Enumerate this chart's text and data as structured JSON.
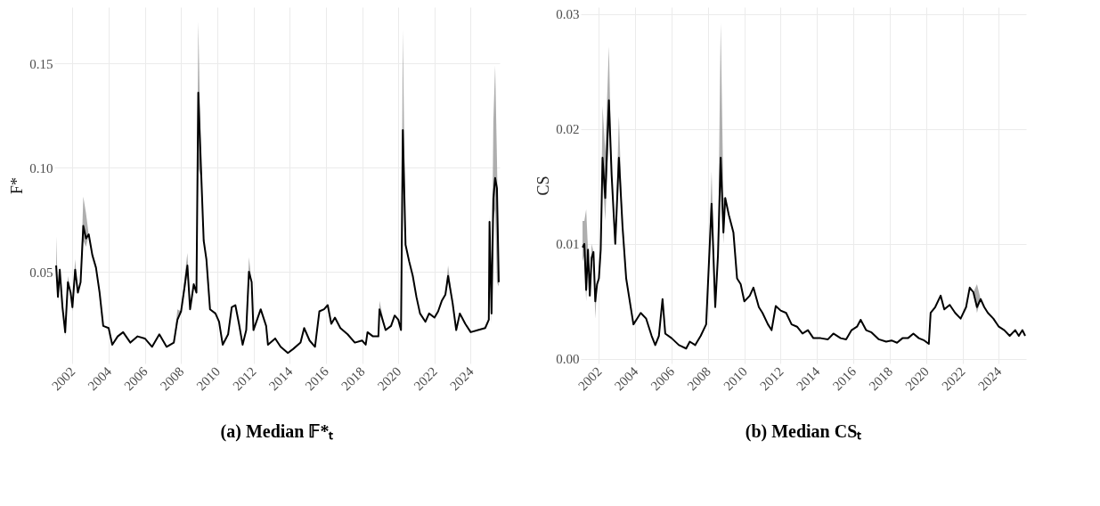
{
  "chart_data": [
    {
      "type": "line",
      "title": "(a) Median 𝔽*ₜ",
      "ylabel": "F*",
      "grid": true,
      "xlim": [
        2001.0,
        2025.6
      ],
      "xticks": [
        2002,
        2004,
        2006,
        2008,
        2010,
        2012,
        2014,
        2016,
        2018,
        2020,
        2022,
        2024
      ],
      "ylim": [
        0.006,
        0.177
      ],
      "yticks": [
        {
          "value": 0.05,
          "label": "0.05"
        },
        {
          "value": 0.1,
          "label": "0.10"
        },
        {
          "value": 0.15,
          "label": "0.15"
        }
      ],
      "x": [
        2001.1,
        2001.2,
        2001.3,
        2001.45,
        2001.6,
        2001.75,
        2001.9,
        2002.0,
        2002.15,
        2002.3,
        2002.45,
        2002.6,
        2002.75,
        2002.9,
        2003.1,
        2003.3,
        2003.5,
        2003.7,
        2004.0,
        2004.2,
        2004.5,
        2004.8,
        2005.2,
        2005.6,
        2006.0,
        2006.4,
        2006.8,
        2007.2,
        2007.6,
        2007.8,
        2008.0,
        2008.2,
        2008.35,
        2008.5,
        2008.7,
        2008.85,
        2008.95,
        2009.1,
        2009.25,
        2009.4,
        2009.6,
        2009.9,
        2010.1,
        2010.3,
        2010.6,
        2010.8,
        2011.0,
        2011.2,
        2011.4,
        2011.6,
        2011.75,
        2011.9,
        2012.0,
        2012.4,
        2012.7,
        2012.8,
        2013.2,
        2013.5,
        2013.9,
        2014.2,
        2014.6,
        2014.8,
        2015.1,
        2015.4,
        2015.64,
        2015.9,
        2016.1,
        2016.3,
        2016.5,
        2016.8,
        2017.2,
        2017.6,
        2018.0,
        2018.2,
        2018.3,
        2018.6,
        2018.9,
        2018.96,
        2019.3,
        2019.6,
        2019.8,
        2020.0,
        2020.15,
        2020.25,
        2020.4,
        2020.6,
        2020.8,
        2021.0,
        2021.2,
        2021.5,
        2021.7,
        2022.0,
        2022.2,
        2022.4,
        2022.6,
        2022.75,
        2023.0,
        2023.2,
        2023.4,
        2023.7,
        2024.0,
        2024.4,
        2024.8,
        2025.0,
        2025.04,
        2025.15,
        2025.25,
        2025.35,
        2025.45,
        2025.55
      ],
      "series": [
        {
          "color": "#000000",
          "values": [
            0.053,
            0.038,
            0.051,
            0.033,
            0.021,
            0.045,
            0.04,
            0.033,
            0.051,
            0.04,
            0.045,
            0.072,
            0.066,
            0.068,
            0.058,
            0.052,
            0.04,
            0.024,
            0.023,
            0.015,
            0.019,
            0.021,
            0.016,
            0.019,
            0.018,
            0.014,
            0.02,
            0.014,
            0.016,
            0.027,
            0.031,
            0.043,
            0.053,
            0.032,
            0.044,
            0.04,
            0.136,
            0.1,
            0.065,
            0.056,
            0.032,
            0.03,
            0.026,
            0.015,
            0.02,
            0.033,
            0.034,
            0.025,
            0.015,
            0.022,
            0.05,
            0.045,
            0.022,
            0.032,
            0.024,
            0.015,
            0.018,
            0.014,
            0.011,
            0.013,
            0.016,
            0.023,
            0.017,
            0.014,
            0.031,
            0.032,
            0.034,
            0.025,
            0.028,
            0.023,
            0.02,
            0.016,
            0.017,
            0.015,
            0.021,
            0.019,
            0.019,
            0.032,
            0.022,
            0.024,
            0.029,
            0.027,
            0.022,
            0.118,
            0.063,
            0.055,
            0.048,
            0.038,
            0.03,
            0.026,
            0.03,
            0.028,
            0.031,
            0.036,
            0.039,
            0.048,
            0.035,
            0.022,
            0.03,
            0.025,
            0.021,
            0.022,
            0.023,
            0.027,
            0.074,
            0.03,
            0.085,
            0.095,
            0.09,
            0.045
          ],
          "lower": [
            0.053,
            0.036,
            0.048,
            0.033,
            0.019,
            0.045,
            0.04,
            0.031,
            0.051,
            0.04,
            0.045,
            0.065,
            0.062,
            0.068,
            0.058,
            0.052,
            0.04,
            0.024,
            0.023,
            0.015,
            0.019,
            0.021,
            0.016,
            0.019,
            0.018,
            0.014,
            0.02,
            0.014,
            0.016,
            0.026,
            0.031,
            0.041,
            0.05,
            0.032,
            0.044,
            0.04,
            0.1,
            0.095,
            0.065,
            0.056,
            0.032,
            0.03,
            0.026,
            0.015,
            0.02,
            0.033,
            0.034,
            0.025,
            0.015,
            0.022,
            0.047,
            0.045,
            0.022,
            0.032,
            0.024,
            0.015,
            0.018,
            0.014,
            0.011,
            0.013,
            0.016,
            0.023,
            0.017,
            0.014,
            0.031,
            0.032,
            0.034,
            0.025,
            0.028,
            0.023,
            0.02,
            0.016,
            0.017,
            0.015,
            0.021,
            0.019,
            0.019,
            0.03,
            0.022,
            0.024,
            0.029,
            0.027,
            0.022,
            0.11,
            0.063,
            0.055,
            0.048,
            0.038,
            0.03,
            0.026,
            0.03,
            0.028,
            0.031,
            0.036,
            0.039,
            0.046,
            0.035,
            0.022,
            0.03,
            0.025,
            0.021,
            0.022,
            0.023,
            0.027,
            0.07,
            0.025,
            0.075,
            0.08,
            0.045,
            0.043
          ],
          "upper": [
            0.067,
            0.04,
            0.052,
            0.033,
            0.023,
            0.048,
            0.04,
            0.034,
            0.056,
            0.04,
            0.045,
            0.086,
            0.078,
            0.068,
            0.058,
            0.052,
            0.04,
            0.024,
            0.023,
            0.015,
            0.019,
            0.021,
            0.016,
            0.019,
            0.018,
            0.014,
            0.02,
            0.014,
            0.016,
            0.032,
            0.031,
            0.048,
            0.059,
            0.032,
            0.044,
            0.04,
            0.17,
            0.105,
            0.065,
            0.056,
            0.032,
            0.03,
            0.026,
            0.015,
            0.02,
            0.033,
            0.034,
            0.025,
            0.015,
            0.022,
            0.057,
            0.045,
            0.022,
            0.032,
            0.024,
            0.015,
            0.018,
            0.014,
            0.011,
            0.013,
            0.016,
            0.023,
            0.017,
            0.014,
            0.031,
            0.032,
            0.034,
            0.025,
            0.028,
            0.023,
            0.02,
            0.016,
            0.017,
            0.015,
            0.021,
            0.019,
            0.019,
            0.036,
            0.022,
            0.024,
            0.029,
            0.027,
            0.022,
            0.166,
            0.063,
            0.055,
            0.048,
            0.038,
            0.03,
            0.026,
            0.03,
            0.028,
            0.031,
            0.036,
            0.039,
            0.053,
            0.035,
            0.022,
            0.03,
            0.025,
            0.021,
            0.022,
            0.023,
            0.027,
            0.077,
            0.032,
            0.122,
            0.149,
            0.104,
            0.05
          ]
        }
      ]
    },
    {
      "type": "line",
      "title": "(b) Median CSₜ",
      "ylabel": "CS",
      "grid": true,
      "xlim": [
        2001.0,
        2025.5
      ],
      "xticks": [
        2002,
        2004,
        2006,
        2008,
        2010,
        2012,
        2014,
        2016,
        2018,
        2020,
        2022,
        2024
      ],
      "ylim": [
        -0.0004,
        0.0306
      ],
      "yticks": [
        {
          "value": 0,
          "label": "0.00"
        },
        {
          "value": 0.01,
          "label": "0.01"
        },
        {
          "value": 0.02,
          "label": "0.02"
        },
        {
          "value": 0.03,
          "label": "0.03"
        }
      ],
      "x": [
        2001.1,
        2001.2,
        2001.3,
        2001.4,
        2001.5,
        2001.6,
        2001.7,
        2001.8,
        2001.9,
        2002.0,
        2002.1,
        2002.2,
        2002.35,
        2002.55,
        2002.7,
        2002.9,
        2003.1,
        2003.3,
        2003.5,
        2003.7,
        2003.9,
        2004.1,
        2004.3,
        2004.6,
        2004.9,
        2005.1,
        2005.3,
        2005.5,
        2005.65,
        2006.0,
        2006.4,
        2006.8,
        2007.0,
        2007.3,
        2007.6,
        2007.9,
        2008.0,
        2008.2,
        2008.4,
        2008.55,
        2008.7,
        2008.85,
        2008.95,
        2009.15,
        2009.4,
        2009.6,
        2009.8,
        2010.0,
        2010.3,
        2010.5,
        2010.8,
        2011.0,
        2011.3,
        2011.5,
        2011.73,
        2012.0,
        2012.3,
        2012.6,
        2012.9,
        2013.2,
        2013.5,
        2013.8,
        2014.2,
        2014.6,
        2014.9,
        2015.3,
        2015.6,
        2015.9,
        2016.2,
        2016.4,
        2016.7,
        2017.0,
        2017.4,
        2017.8,
        2018.1,
        2018.4,
        2018.7,
        2019.0,
        2019.3,
        2019.6,
        2019.9,
        2020.15,
        2020.25,
        2020.5,
        2020.8,
        2021.0,
        2021.3,
        2021.6,
        2021.9,
        2022.2,
        2022.4,
        2022.6,
        2022.8,
        2023.0,
        2023.2,
        2023.4,
        2023.7,
        2024.0,
        2024.3,
        2024.6,
        2024.9,
        2025.1,
        2025.3,
        2025.45
      ],
      "series": [
        {
          "color": "#000000",
          "values": [
            0.0097,
            0.01,
            0.006,
            0.0095,
            0.0055,
            0.0088,
            0.0093,
            0.005,
            0.0065,
            0.007,
            0.0095,
            0.0175,
            0.014,
            0.0225,
            0.016,
            0.01,
            0.0175,
            0.0115,
            0.007,
            0.005,
            0.003,
            0.0035,
            0.004,
            0.0035,
            0.002,
            0.0012,
            0.002,
            0.0052,
            0.0022,
            0.0018,
            0.0012,
            0.0009,
            0.0015,
            0.0012,
            0.002,
            0.003,
            0.0065,
            0.0135,
            0.0045,
            0.009,
            0.0175,
            0.011,
            0.014,
            0.0125,
            0.011,
            0.007,
            0.0065,
            0.005,
            0.0055,
            0.0062,
            0.0045,
            0.004,
            0.003,
            0.0025,
            0.0046,
            0.0042,
            0.004,
            0.003,
            0.0028,
            0.0022,
            0.0025,
            0.0018,
            0.0018,
            0.0017,
            0.0022,
            0.0018,
            0.0017,
            0.0025,
            0.0028,
            0.0034,
            0.0025,
            0.0023,
            0.0017,
            0.0015,
            0.0016,
            0.0014,
            0.0018,
            0.0018,
            0.0022,
            0.0018,
            0.0016,
            0.0013,
            0.004,
            0.0045,
            0.0055,
            0.0043,
            0.0047,
            0.004,
            0.0035,
            0.0045,
            0.0062,
            0.0058,
            0.0045,
            0.0052,
            0.0045,
            0.004,
            0.0035,
            0.0028,
            0.0025,
            0.002,
            0.0025,
            0.002,
            0.0025,
            0.002
          ],
          "lower": [
            0.0085,
            0.009,
            0.005,
            0.0095,
            0.0055,
            0.008,
            0.0093,
            0.0035,
            0.0065,
            0.007,
            0.0095,
            0.016,
            0.012,
            0.02,
            0.016,
            0.01,
            0.017,
            0.0115,
            0.007,
            0.005,
            0.003,
            0.0035,
            0.004,
            0.0035,
            0.002,
            0.0012,
            0.002,
            0.0052,
            0.0022,
            0.0018,
            0.0012,
            0.0009,
            0.0015,
            0.0012,
            0.002,
            0.003,
            0.0065,
            0.013,
            0.0045,
            0.009,
            0.016,
            0.01,
            0.014,
            0.0125,
            0.011,
            0.007,
            0.0065,
            0.005,
            0.0055,
            0.0062,
            0.0045,
            0.004,
            0.003,
            0.0025,
            0.0046,
            0.0042,
            0.004,
            0.003,
            0.0028,
            0.0022,
            0.0025,
            0.0018,
            0.0018,
            0.0017,
            0.0022,
            0.0018,
            0.0017,
            0.0025,
            0.0028,
            0.0034,
            0.0025,
            0.0023,
            0.0017,
            0.0015,
            0.0016,
            0.0014,
            0.0018,
            0.0018,
            0.0022,
            0.0018,
            0.0016,
            0.0013,
            0.004,
            0.0045,
            0.0055,
            0.0043,
            0.0047,
            0.004,
            0.0035,
            0.0045,
            0.0062,
            0.0058,
            0.004,
            0.0052,
            0.0045,
            0.004,
            0.0035,
            0.0028,
            0.0025,
            0.002,
            0.0025,
            0.002,
            0.0025,
            0.002
          ],
          "upper": [
            0.012,
            0.012,
            0.013,
            0.0095,
            0.0055,
            0.01,
            0.0093,
            0.0055,
            0.0065,
            0.007,
            0.0095,
            0.022,
            0.018,
            0.0272,
            0.016,
            0.01,
            0.0211,
            0.0115,
            0.007,
            0.005,
            0.003,
            0.0035,
            0.004,
            0.0035,
            0.002,
            0.0012,
            0.002,
            0.0052,
            0.0022,
            0.0018,
            0.0012,
            0.0009,
            0.0015,
            0.0012,
            0.002,
            0.003,
            0.0065,
            0.0163,
            0.0045,
            0.009,
            0.0292,
            0.014,
            0.014,
            0.0125,
            0.011,
            0.007,
            0.0065,
            0.005,
            0.0055,
            0.0062,
            0.0045,
            0.004,
            0.003,
            0.0025,
            0.0046,
            0.0042,
            0.004,
            0.003,
            0.0028,
            0.0022,
            0.0025,
            0.0018,
            0.0018,
            0.0017,
            0.0022,
            0.0018,
            0.0017,
            0.0025,
            0.0028,
            0.0034,
            0.0025,
            0.0023,
            0.0017,
            0.0015,
            0.0016,
            0.0014,
            0.0018,
            0.0018,
            0.0022,
            0.0018,
            0.0016,
            0.0013,
            0.004,
            0.0045,
            0.0055,
            0.0043,
            0.0047,
            0.004,
            0.0035,
            0.0045,
            0.0062,
            0.0058,
            0.0065,
            0.0052,
            0.0045,
            0.004,
            0.0035,
            0.0028,
            0.0025,
            0.002,
            0.0025,
            0.002,
            0.0025,
            0.002
          ]
        }
      ]
    }
  ]
}
